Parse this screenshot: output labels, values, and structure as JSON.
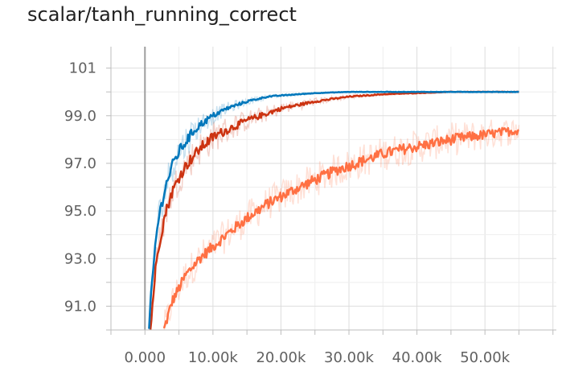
{
  "title": "scalar/tanh_running_correct",
  "chart_data": {
    "type": "line",
    "title": "scalar/tanh_running_correct",
    "xlabel": "",
    "ylabel": "",
    "xlim": [
      -5000,
      60500
    ],
    "ylim": [
      90.0,
      101.9
    ],
    "x_ticks": [
      0,
      10000,
      20000,
      30000,
      40000,
      50000
    ],
    "x_tick_labels": [
      "0.000",
      "10.00k",
      "20.00k",
      "30.00k",
      "40.00k",
      "50.00k"
    ],
    "y_ticks": [
      91,
      93,
      95,
      97,
      99,
      101
    ],
    "y_tick_labels": [
      "91.0",
      "93.0",
      "95.0",
      "97.0",
      "99.0",
      "101"
    ],
    "grid": true,
    "legend": "none",
    "series": [
      {
        "color": "#0077bb",
        "x": [
          600,
          1000,
          1500,
          2000,
          3000,
          4000,
          5000,
          6000,
          7000,
          8000,
          10000,
          12000,
          15000,
          18000,
          20000,
          25000,
          30000,
          35000,
          40000,
          45000,
          50000,
          55000
        ],
        "y": [
          90.0,
          91.8,
          93.5,
          94.7,
          96.0,
          96.9,
          97.5,
          97.9,
          98.3,
          98.6,
          99.0,
          99.3,
          99.6,
          99.8,
          99.85,
          99.95,
          100.0,
          100.0,
          100.0,
          100.0,
          100.0,
          100.0
        ]
      },
      {
        "color": "#cc3311",
        "x": [
          800,
          1500,
          2000,
          3000,
          4000,
          5000,
          6000,
          8000,
          10000,
          12000,
          15000,
          18000,
          20000,
          25000,
          30000,
          35000,
          40000,
          45000,
          50000,
          55000
        ],
        "y": [
          90.0,
          92.4,
          93.5,
          94.9,
          95.8,
          96.4,
          96.9,
          97.6,
          98.1,
          98.4,
          98.8,
          99.1,
          99.3,
          99.6,
          99.8,
          99.9,
          99.95,
          100.0,
          100.0,
          100.0
        ],
        "shadow": true
      },
      {
        "color": "#ff7043",
        "x": [
          2800,
          4000,
          6000,
          8000,
          10000,
          12000,
          15000,
          18000,
          20000,
          22000,
          25000,
          28000,
          30000,
          33000,
          35000,
          38000,
          40000,
          45000,
          50000,
          55000
        ],
        "y": [
          90.0,
          91.2,
          92.3,
          93.0,
          93.5,
          94.0,
          94.7,
          95.3,
          95.6,
          95.9,
          96.3,
          96.7,
          96.9,
          97.2,
          97.4,
          97.6,
          97.7,
          98.0,
          98.2,
          98.4
        ],
        "shadow": true
      }
    ]
  }
}
